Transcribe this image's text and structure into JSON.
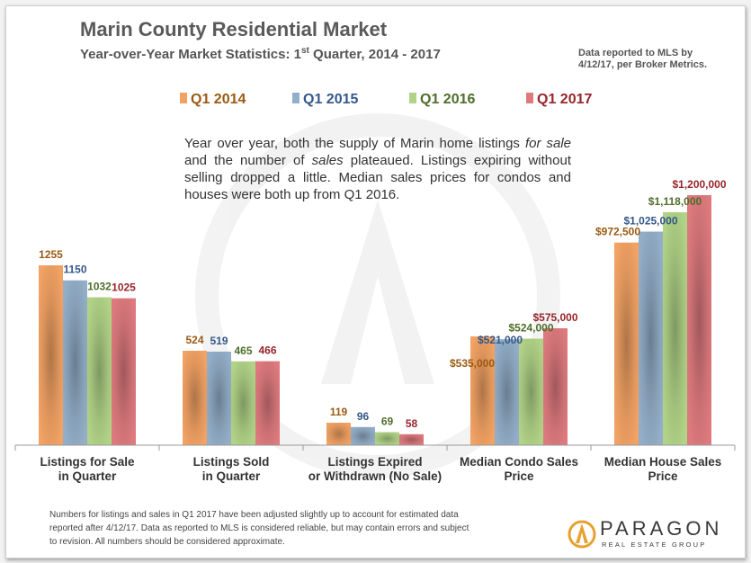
{
  "header": {
    "title": "Marin County Residential Market",
    "subtitle_main": "Year-over-Year Market Statistics: 1",
    "subtitle_sup": "st",
    "subtitle_rest": " Quarter, 2014 - 2017",
    "source_line1": "Data reported to MLS by",
    "source_line2": "4/12/17, per Broker Metrics."
  },
  "description_parts": {
    "p1": "Year over year, both the supply of Marin home listings ",
    "p2": "for sale",
    "p3": " and the number of ",
    "p4": "sales",
    "p5": " plateaued. Listings expiring without selling dropped a little. Median sales prices for condos and houses were both up from Q1 2016."
  },
  "footnote": {
    "line1": "Numbers for listings and sales in Q1 2017 have been adjusted slightly up to account for estimated data",
    "line2": "reported after 4/12/17. Data as reported to MLS is considered reliable, but may contain errors and subject",
    "line3": "to revision. All numbers should be considered approximate."
  },
  "brand": {
    "name": "PARAGON",
    "tagline": "REAL ESTATE GROUP"
  },
  "chart_data": {
    "type": "bar",
    "series": [
      {
        "name": "Q1 2014",
        "color": "#f2a264",
        "label_color": "#9a5a12"
      },
      {
        "name": "Q1 2015",
        "color": "#93aec8",
        "label_color": "#34588a"
      },
      {
        "name": "Q1 2016",
        "color": "#b1d387",
        "label_color": "#4e6e2a"
      },
      {
        "name": "Q1 2017",
        "color": "#de7a7e",
        "label_color": "#96262a"
      }
    ],
    "groups": [
      {
        "lines": [
          "Listings for Sale",
          "in Quarter"
        ],
        "values": [
          1255,
          1150,
          1032,
          1025
        ],
        "labels": [
          "1255",
          "1150",
          "1032",
          "1025"
        ]
      },
      {
        "lines": [
          "Listings Sold",
          "in Quarter"
        ],
        "values": [
          524,
          519,
          465,
          466
        ],
        "labels": [
          "524",
          "519",
          "465",
          "466"
        ]
      },
      {
        "lines": [
          "Listings Expired",
          "or Withdrawn (No Sale)"
        ],
        "values": [
          119,
          96,
          69,
          58
        ],
        "labels": [
          "119",
          "96",
          "69",
          "58"
        ]
      },
      {
        "lines": [
          "Median Condo Sales",
          "Price"
        ],
        "values": [
          535000,
          521000,
          524000,
          575000
        ],
        "labels": [
          "$535,000",
          "$521,000",
          "$524,000",
          "$575,000"
        ]
      },
      {
        "lines": [
          "Median House Sales",
          "Price"
        ],
        "values": [
          972500,
          1025000,
          1118000,
          1200000
        ],
        "labels": [
          "$972,500",
          "$1,025,000",
          "$1,118,000",
          "$1,200,000"
        ]
      }
    ]
  }
}
